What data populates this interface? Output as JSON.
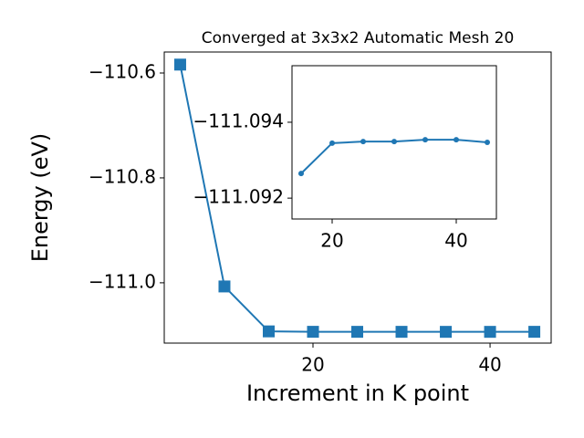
{
  "chart_data": [
    {
      "type": "line",
      "title": "Converged at 3x3x2 Automatic Mesh 20",
      "x_label": "Increment in K point",
      "y_label": "Energy (eV)",
      "x": [
        5,
        10,
        15,
        20,
        25,
        30,
        35,
        40,
        45
      ],
      "series": [
        {
          "color": "#1f77b4",
          "marker": "square",
          "values": [
            -110.584,
            -111.007,
            -111.09265,
            -111.09345,
            -111.09349,
            -111.09349,
            -111.09354,
            -111.09354,
            -111.09347
          ]
        }
      ],
      "xlim": [
        3.2,
        46.9
      ],
      "ylim": [
        -111.115,
        -110.56
      ],
      "xticks": [
        20,
        40
      ],
      "yticks": [
        {
          "value": -111.0,
          "label": "−111.0"
        },
        {
          "value": -110.8,
          "label": "−110.8"
        },
        {
          "value": -110.6,
          "label": "−110.6"
        }
      ]
    },
    {
      "type": "line",
      "x": [
        15,
        20,
        25,
        30,
        35,
        40,
        45
      ],
      "series": [
        {
          "color": "#1f77b4",
          "marker": "circle",
          "values": [
            -111.09265,
            -111.09345,
            -111.09349,
            -111.09349,
            -111.09354,
            -111.09354,
            -111.09347
          ]
        }
      ],
      "xlim": [
        13.53,
        46.47
      ],
      "ylim": [
        -111.09145,
        -111.09549
      ],
      "xticks": [
        20,
        40
      ],
      "yticks": [
        {
          "value": -111.092,
          "label": "−111.092"
        },
        {
          "value": -111.094,
          "label": "−111.094"
        }
      ]
    }
  ]
}
